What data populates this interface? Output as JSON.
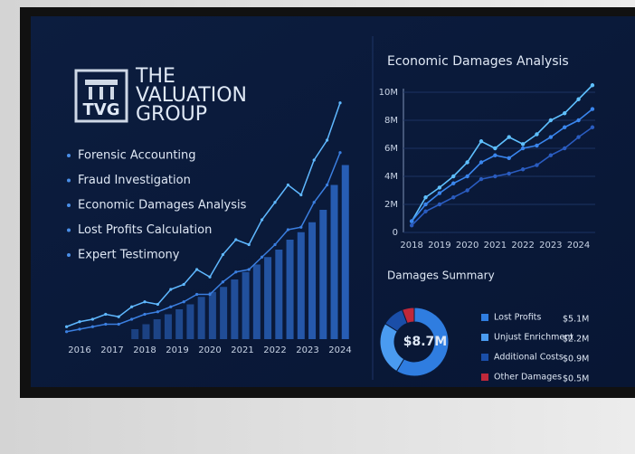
{
  "logo": {
    "mark": "TVG",
    "name_lines": [
      "THE",
      "VALUATION",
      "GROUP"
    ]
  },
  "services": [
    "Forensic Accounting",
    "Fraud Investigation",
    "Economic Damages Analysis",
    "Lost Profits Calculation",
    "Expert Testimony"
  ],
  "chart_data": [
    {
      "type": "combo",
      "xlim": [
        2015.4,
        2024.6
      ],
      "xticks": [
        2016,
        2017,
        2018,
        2019,
        2020,
        2021,
        2022,
        2023,
        2024
      ],
      "ylim": [
        0,
        100
      ],
      "bars": {
        "color": "#2a63bd",
        "x": [
          2017.7,
          2018.04,
          2018.38,
          2018.72,
          2019.06,
          2019.4,
          2019.74,
          2020.08,
          2020.42,
          2020.76,
          2021.1,
          2021.44,
          2021.78,
          2022.12,
          2022.46,
          2022.8,
          2023.14,
          2023.48,
          2023.82,
          2024.16
        ],
        "values": [
          4,
          6,
          8,
          10,
          12,
          14,
          17,
          19,
          21,
          24,
          27,
          30,
          33,
          36,
          40,
          43,
          47,
          52,
          62,
          70
        ]
      },
      "series": [
        {
          "color": "#5fb8ff",
          "x": [
            2015.6,
            2016.0,
            2016.4,
            2016.8,
            2017.2,
            2017.6,
            2018.0,
            2018.4,
            2018.8,
            2019.2,
            2019.6,
            2020.0,
            2020.4,
            2020.8,
            2021.2,
            2021.6,
            2022.0,
            2022.4,
            2022.8,
            2023.2,
            2023.6,
            2024.0
          ],
          "values": [
            5,
            7,
            8,
            10,
            9,
            13,
            15,
            14,
            20,
            22,
            28,
            25,
            34,
            40,
            38,
            48,
            55,
            62,
            58,
            72,
            80,
            95
          ]
        },
        {
          "color": "#3b7fe0",
          "x": [
            2015.6,
            2016.0,
            2016.4,
            2016.8,
            2017.2,
            2017.6,
            2018.0,
            2018.4,
            2018.8,
            2019.2,
            2019.6,
            2020.0,
            2020.4,
            2020.8,
            2021.2,
            2021.6,
            2022.0,
            2022.4,
            2022.8,
            2023.2,
            2023.6,
            2024.0
          ],
          "values": [
            3,
            4,
            5,
            6,
            6,
            8,
            10,
            11,
            13,
            15,
            18,
            18,
            23,
            27,
            28,
            33,
            38,
            44,
            45,
            55,
            62,
            75
          ]
        }
      ]
    },
    {
      "type": "line",
      "title": "Economic Damages Analysis",
      "xlim": [
        2017.8,
        2024.6
      ],
      "xticks": [
        2018,
        2019,
        2020,
        2021,
        2022,
        2023,
        2024
      ],
      "ylim": [
        0,
        10
      ],
      "yticks": [
        0,
        {
          "value": 2,
          "label": "2M"
        },
        {
          "value": 4,
          "label": "4M"
        },
        {
          "value": 6,
          "label": "6M"
        },
        {
          "value": 8,
          "label": "8M"
        },
        {
          "value": 10,
          "label": "10M"
        }
      ],
      "x": [
        2018,
        2018.5,
        2019,
        2019.5,
        2020,
        2020.5,
        2021,
        2021.5,
        2022,
        2022.5,
        2023,
        2023.5,
        2024,
        2024.5
      ],
      "series": [
        {
          "color": "#5fc0ff",
          "values": [
            0.8,
            2.5,
            3.2,
            4,
            5,
            6.5,
            6,
            6.8,
            6.3,
            7,
            8,
            8.5,
            9.5,
            10.5
          ]
        },
        {
          "color": "#3a86ee",
          "values": [
            0.8,
            2,
            2.8,
            3.5,
            4,
            5,
            5.5,
            5.3,
            6,
            6.2,
            6.8,
            7.5,
            8,
            8.8
          ]
        },
        {
          "color": "#2a5cc0",
          "values": [
            0.5,
            1.5,
            2,
            2.5,
            3,
            3.8,
            4,
            4.2,
            4.5,
            4.8,
            5.5,
            6,
            6.8,
            7.5
          ]
        }
      ]
    },
    {
      "type": "donut",
      "title": "Damages Summary",
      "total": {
        "value": 8.7,
        "label": "$8.7M"
      },
      "categories": [
        "Lost Profits",
        "Unjust Enrichment",
        "Additional Costs",
        "Other Damages"
      ],
      "values": [
        5.1,
        2.2,
        0.9,
        0.5
      ],
      "value_labels": [
        "$5.1M",
        "$2.2M",
        "$0.9M",
        "$0.5M"
      ],
      "colors": [
        "#2f7de0",
        "#4a9bf0",
        "#1a4ea8",
        "#c0283a"
      ]
    }
  ]
}
